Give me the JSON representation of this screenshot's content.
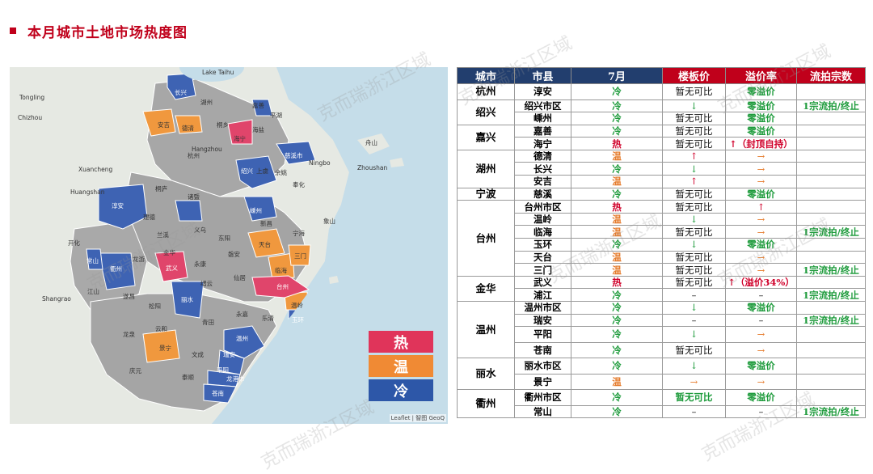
{
  "page": {
    "title": "本月城市土地市场热度图",
    "watermark": "克而瑞浙江区域"
  },
  "colors": {
    "hot": "#e0456b",
    "warm": "#f0983e",
    "cold": "#3e63b3",
    "none": "#a9a9a9",
    "sea": "#c5dde9",
    "land": "#e8ebe6"
  },
  "legend": [
    {
      "label": "热",
      "color": "#e0345a"
    },
    {
      "label": "温",
      "color": "#f08a34"
    },
    {
      "label": "冷",
      "color": "#2d57a8"
    }
  ],
  "map": {
    "attribution": "Leaflet | 智图 GeoQ",
    "labels": {
      "lake_taihu": "Lake Taihu",
      "changxing": "长兴",
      "huzhou": "湖州",
      "jiashan": "嘉善",
      "pinghu": "平湖",
      "anji": "安吉",
      "deqing": "德清",
      "tongxiang": "桐乡",
      "haiyan": "海盐",
      "haining": "海宁",
      "hangzhou": "Hangzhou",
      "hangzhou_cn": "杭州",
      "cixi": "慈溪市",
      "ningbo": "Ningbo",
      "zhoushan": "舟山",
      "zhoushan_en": "Zhoushan",
      "shaoxing": "绍兴",
      "yuyao": "余姚",
      "shangyu": "上虞",
      "yinzhou": "鄞州",
      "fenghua": "奉化",
      "chunan": "淳安",
      "jiande": "建德",
      "tonglu": "桐庐",
      "fuyang": "富阳",
      "zhuji": "诸暨",
      "shengzhou": "嵊州",
      "xinchang": "新昌",
      "xiangshan": "象山",
      "ninghai": "宁海",
      "kaihua": "开化",
      "changshan": "常山",
      "quzhou": "衢州",
      "longyou": "龙游",
      "lanxi": "兰溪",
      "jinhua": "金华",
      "yiwu": "义乌",
      "dongyang": "东阳",
      "pan_an": "磐安",
      "tiantai": "天台",
      "sanmen": "三门",
      "linhai": "临海",
      "taizhou": "台州",
      "wenling": "温岭",
      "yuhuan": "玉环",
      "jiangshan": "江山",
      "suichang": "遂昌",
      "wuyi": "武义",
      "yongkang": "永康",
      "jinyun": "缙云",
      "xianju": "仙居",
      "lishui": "丽水",
      "songyang": "松阳",
      "qingtian": "青田",
      "yongjia": "永嘉",
      "leqing": "乐清",
      "yueqing_wz": "温州",
      "ruian": "瑞安",
      "pingyang": "平阳",
      "cangnan": "苍南",
      "longquan": "龙泉",
      "qingyuan": "庆元",
      "jingning": "景宁",
      "yunhe": "云和",
      "taishun": "泰顺",
      "wencheng": "文成",
      "longgang": "龙港市",
      "shangrao": "Shangrao",
      "tongling": "Tongling",
      "chizhou": "Chizhou",
      "huangshan": "Huangshan",
      "xuancheng": "Xuancheng",
      "zhoushan_dongshan": "Zhoushan"
    }
  },
  "table": {
    "headers": [
      "城市",
      "市县",
      "7月",
      "楼板价",
      "溢价率",
      "流拍宗数"
    ],
    "rows": [
      {
        "city": "杭州",
        "span": 1,
        "county": "淳安",
        "heat": "冷",
        "heat_cls": "t-cold",
        "price": "暂无可比",
        "price_cls": "k",
        "premium": "零溢价",
        "premium_cls": "gb",
        "failed": "",
        "failed_cls": "gb",
        "tall": true
      },
      {
        "city": "绍兴",
        "span": 2,
        "county": "绍兴市区",
        "heat": "冷",
        "heat_cls": "t-cold",
        "price": "↓",
        "price_cls": "g",
        "premium": "零溢价",
        "premium_cls": "gb",
        "failed": "1宗流拍/终止",
        "failed_cls": "gb"
      },
      {
        "city": "",
        "span": 0,
        "county": "嵊州",
        "heat": "冷",
        "heat_cls": "t-cold",
        "price": "暂无可比",
        "price_cls": "k",
        "premium": "零溢价",
        "premium_cls": "gb",
        "failed": "",
        "failed_cls": "gb"
      },
      {
        "city": "嘉兴",
        "span": 2,
        "county": "嘉善",
        "heat": "冷",
        "heat_cls": "t-cold",
        "price": "暂无可比",
        "price_cls": "k",
        "premium": "零溢价",
        "premium_cls": "gb",
        "failed": "",
        "failed_cls": "gb"
      },
      {
        "city": "",
        "span": 0,
        "county": "海宁",
        "heat": "热",
        "heat_cls": "t-hot",
        "price": "暂无可比",
        "price_cls": "k",
        "premium": "↑（封顶自持）",
        "premium_cls": "rb",
        "failed": "",
        "failed_cls": "gb"
      },
      {
        "city": "湖州",
        "span": 3,
        "county": "德清",
        "heat": "温",
        "heat_cls": "t-warm",
        "price": "↑",
        "price_cls": "r",
        "premium": "→",
        "premium_cls": "o",
        "failed": "",
        "failed_cls": "gb"
      },
      {
        "city": "",
        "span": 0,
        "county": "长兴",
        "heat": "冷",
        "heat_cls": "t-cold",
        "price": "↓",
        "price_cls": "g",
        "premium": "→",
        "premium_cls": "o",
        "failed": "",
        "failed_cls": "gb"
      },
      {
        "city": "",
        "span": 0,
        "county": "安吉",
        "heat": "温",
        "heat_cls": "t-warm",
        "price": "↑",
        "price_cls": "r",
        "premium": "→",
        "premium_cls": "o",
        "failed": "",
        "failed_cls": "gb"
      },
      {
        "city": "宁波",
        "span": 1,
        "county": "慈溪",
        "heat": "冷",
        "heat_cls": "t-cold",
        "price": "暂无可比",
        "price_cls": "k",
        "premium": "零溢价",
        "premium_cls": "gb",
        "failed": "",
        "failed_cls": "gb"
      },
      {
        "city": "台州",
        "span": 6,
        "county": "台州市区",
        "heat": "热",
        "heat_cls": "t-hot",
        "price": "暂无可比",
        "price_cls": "k",
        "premium": "↑",
        "premium_cls": "r",
        "failed": "",
        "failed_cls": "gb"
      },
      {
        "city": "",
        "span": 0,
        "county": "温岭",
        "heat": "温",
        "heat_cls": "t-warm",
        "price": "↓",
        "price_cls": "g",
        "premium": "→",
        "premium_cls": "o",
        "failed": "",
        "failed_cls": "gb"
      },
      {
        "city": "",
        "span": 0,
        "county": "临海",
        "heat": "温",
        "heat_cls": "t-warm",
        "price": "暂无可比",
        "price_cls": "k",
        "premium": "→",
        "premium_cls": "o",
        "failed": "1宗流拍/终止",
        "failed_cls": "gb"
      },
      {
        "city": "",
        "span": 0,
        "county": "玉环",
        "heat": "冷",
        "heat_cls": "t-cold",
        "price": "↓",
        "price_cls": "g",
        "premium": "零溢价",
        "premium_cls": "gb",
        "failed": "",
        "failed_cls": "gb"
      },
      {
        "city": "",
        "span": 0,
        "county": "天台",
        "heat": "温",
        "heat_cls": "t-warm",
        "price": "暂无可比",
        "price_cls": "k",
        "premium": "→",
        "premium_cls": "o",
        "failed": "",
        "failed_cls": "gb"
      },
      {
        "city": "",
        "span": 0,
        "county": "三门",
        "heat": "温",
        "heat_cls": "t-warm",
        "price": "暂无可比",
        "price_cls": "k",
        "premium": "→",
        "premium_cls": "o",
        "failed": "1宗流拍/终止",
        "failed_cls": "gb"
      },
      {
        "city": "金华",
        "span": 2,
        "county": "武义",
        "heat": "热",
        "heat_cls": "t-hot",
        "price": "暂无可比",
        "price_cls": "k",
        "premium": "↑（溢价34%）",
        "premium_cls": "rb",
        "failed": "",
        "failed_cls": "gb"
      },
      {
        "city": "",
        "span": 0,
        "county": "浦江",
        "heat": "冷",
        "heat_cls": "t-cold",
        "price": "–",
        "price_cls": "k",
        "premium": "–",
        "premium_cls": "k",
        "failed": "1宗流拍/终止",
        "failed_cls": "gb"
      },
      {
        "city": "温州",
        "span": 4,
        "county": "温州市区",
        "heat": "冷",
        "heat_cls": "t-cold",
        "price": "↓",
        "price_cls": "g",
        "premium": "零溢价",
        "premium_cls": "gb",
        "failed": "",
        "failed_cls": "gb"
      },
      {
        "city": "",
        "span": 0,
        "county": "瑞安",
        "heat": "冷",
        "heat_cls": "t-cold",
        "price": "–",
        "price_cls": "k",
        "premium": "–",
        "premium_cls": "k",
        "failed": "1宗流拍/终止",
        "failed_cls": "gb"
      },
      {
        "city": "",
        "span": 0,
        "county": "平阳",
        "heat": "冷",
        "heat_cls": "t-cold",
        "price": "↓",
        "price_cls": "g",
        "premium": "→",
        "premium_cls": "o",
        "failed": "",
        "failed_cls": "gb",
        "tall": true
      },
      {
        "city": "",
        "span": 0,
        "county": "苍南",
        "heat": "冷",
        "heat_cls": "t-cold",
        "price": "暂无可比",
        "price_cls": "k",
        "premium": "→",
        "premium_cls": "o",
        "failed": "",
        "failed_cls": "gb",
        "tall": true
      },
      {
        "city": "丽水",
        "span": 2,
        "county": "丽水市区",
        "heat": "冷",
        "heat_cls": "t-cold",
        "price": "↓",
        "price_cls": "g",
        "premium": "零溢价",
        "premium_cls": "gb",
        "failed": "",
        "failed_cls": "gb",
        "tall": true
      },
      {
        "city": "",
        "span": 0,
        "county": "景宁",
        "heat": "温",
        "heat_cls": "t-warm",
        "price": "→",
        "price_cls": "o",
        "premium": "→",
        "premium_cls": "o",
        "failed": "",
        "failed_cls": "gb",
        "tall": true
      },
      {
        "city": "衢州",
        "span": 2,
        "county": "衢州市区",
        "heat": "冷",
        "heat_cls": "t-cold",
        "price": "暂无可比",
        "price_cls": "gb",
        "premium": "零溢价",
        "premium_cls": "gb",
        "failed": "",
        "failed_cls": "gb",
        "tall": true
      },
      {
        "city": "",
        "span": 0,
        "county": "常山",
        "heat": "冷",
        "heat_cls": "t-cold",
        "price": "–",
        "price_cls": "k",
        "premium": "–",
        "premium_cls": "k",
        "failed": "1宗流拍/终止",
        "failed_cls": "gb"
      }
    ]
  }
}
